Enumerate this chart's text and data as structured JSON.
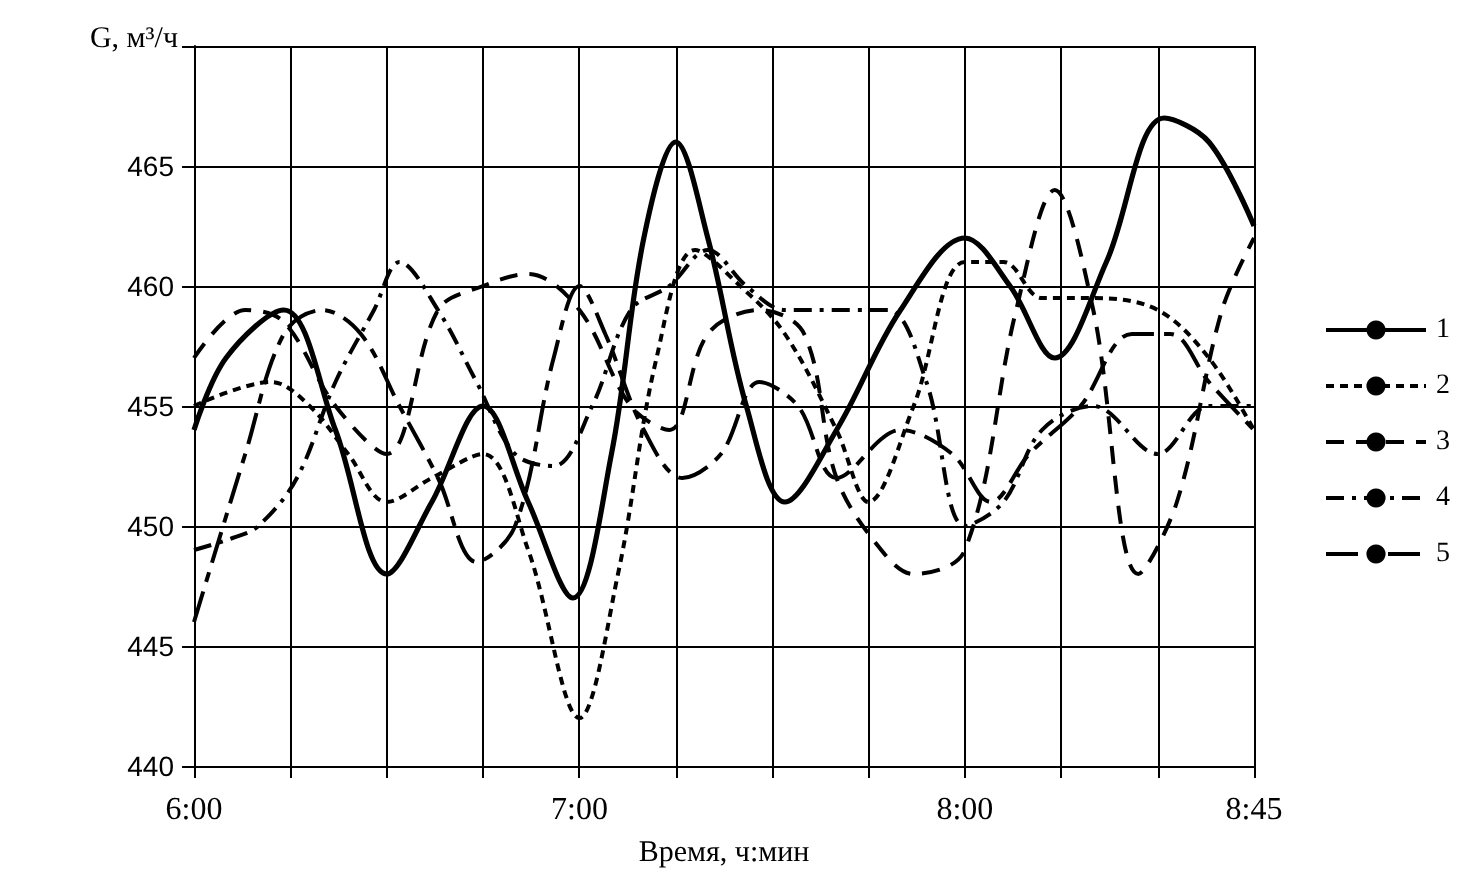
{
  "chart_data": {
    "type": "line",
    "xlabel": "Время, ч:мин",
    "ylabel": "G, м³/ч",
    "xlim": [
      6,
      8.75
    ],
    "xticks": [
      {
        "value": 6,
        "label": "6:00"
      },
      {
        "value": 6.25,
        "label": null
      },
      {
        "value": 6.5,
        "label": null
      },
      {
        "value": 6.75,
        "label": null
      },
      {
        "value": 7,
        "label": "7:00"
      },
      {
        "value": 7.25,
        "label": null
      },
      {
        "value": 7.5,
        "label": null
      },
      {
        "value": 7.75,
        "label": null
      },
      {
        "value": 8,
        "label": "8:00"
      },
      {
        "value": 8.25,
        "label": null
      },
      {
        "value": 8.5,
        "label": null
      },
      {
        "value": 8.75,
        "label": "8:45"
      }
    ],
    "ylim": [
      440,
      470
    ],
    "yticks": [
      440,
      445,
      450,
      455,
      460,
      465,
      {
        "value": 470,
        "label": null
      }
    ],
    "grid": true,
    "legend": "right",
    "marker": "none",
    "series": [
      {
        "name": "1",
        "color": "#000000",
        "line_style": "solid",
        "x": [
          6,
          6.083,
          6.233,
          6.367,
          6.5,
          6.617,
          6.75,
          6.867,
          6.983,
          7.083,
          7.167,
          7.25,
          7.333,
          7.433,
          7.533,
          7.667,
          7.833,
          8,
          8.117,
          8.233,
          8.367,
          8.517,
          8.633,
          8.75
        ],
        "values": [
          454,
          457,
          459,
          454,
          448,
          451,
          455,
          451,
          447,
          453,
          462,
          466,
          462,
          455,
          451,
          454,
          459,
          462,
          460,
          457,
          461,
          467,
          466,
          462.5
        ]
      },
      {
        "name": "2",
        "color": "#000000",
        "line_style": "dotted",
        "x": [
          6,
          6.2,
          6.3,
          6.4,
          6.5,
          6.617,
          6.75,
          6.867,
          7,
          7.1,
          7.2,
          7.3,
          7.417,
          7.533,
          7.667,
          7.75,
          7.867,
          8,
          8.1,
          8.2,
          8.333,
          8.5,
          8.633,
          8.75
        ],
        "values": [
          455,
          456,
          455,
          453,
          451,
          452,
          453,
          449,
          442,
          448,
          457,
          461.5,
          460,
          458,
          454,
          451,
          455,
          461,
          461,
          459.5,
          459.5,
          459,
          457,
          454
        ]
      },
      {
        "name": "3",
        "color": "#000000",
        "line_style": "dashed",
        "x": [
          6,
          6.133,
          6.233,
          6.367,
          6.5,
          6.633,
          6.75,
          6.867,
          7,
          7.133,
          7.233,
          7.333,
          7.467,
          7.583,
          7.667,
          7.783,
          7.867,
          8,
          8.133,
          8.233,
          8.333,
          8.45,
          8.55,
          8.667,
          8.75
        ],
        "values": [
          457,
          459,
          458.5,
          455,
          453,
          459,
          460,
          460.5,
          459,
          455,
          454,
          458,
          459,
          458,
          452,
          449,
          448,
          449,
          459,
          464,
          459,
          448,
          451,
          459,
          462
        ]
      },
      {
        "name": "4",
        "color": "#000000",
        "line_style": "dashdot",
        "x": [
          6,
          6.1,
          6.167,
          6.267,
          6.367,
          6.467,
          6.533,
          6.633,
          6.733,
          6.833,
          6.933,
          7.033,
          7.133,
          7.233,
          7.333,
          7.433,
          7.533,
          7.667,
          7.8,
          7.9,
          8,
          8.1,
          8.2,
          8.333,
          8.5,
          8.633,
          8.75
        ],
        "values": [
          449,
          449.5,
          450,
          452,
          456,
          459,
          461,
          459,
          456,
          453,
          452.5,
          455,
          459,
          460,
          461.5,
          460,
          459,
          459,
          459,
          456,
          450,
          451,
          454,
          455,
          453,
          455,
          455
        ]
      },
      {
        "name": "5",
        "color": "#000000",
        "line_style": "longdash",
        "x": [
          6,
          6.133,
          6.233,
          6.333,
          6.433,
          6.533,
          6.633,
          6.733,
          6.833,
          6.933,
          7,
          7.067,
          7.167,
          7.267,
          7.367,
          7.467,
          7.567,
          7.667,
          7.833,
          7.967,
          8.067,
          8.167,
          8.3,
          8.433,
          8.533,
          8.633,
          8.75
        ],
        "values": [
          446,
          453,
          458,
          459,
          458,
          455,
          452,
          448.5,
          450,
          457,
          460,
          458,
          454,
          452,
          453,
          456,
          455,
          452,
          454,
          453,
          451,
          453,
          455,
          458,
          458,
          456,
          454
        ]
      }
    ]
  }
}
